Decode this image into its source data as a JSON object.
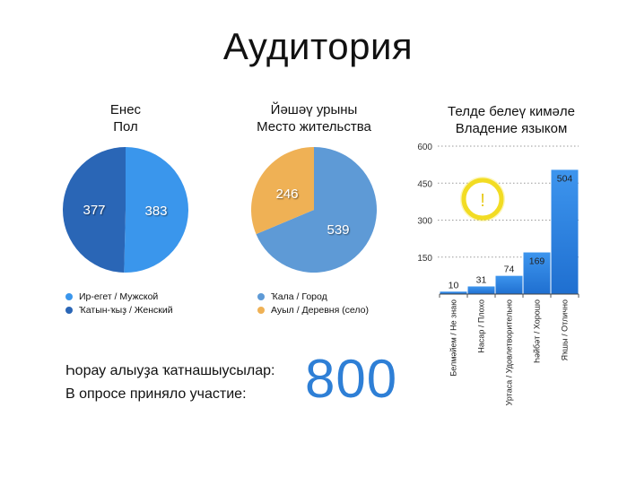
{
  "title": "Аудитория",
  "colors": {
    "male": "#3a96ec",
    "female": "#2a66b6",
    "city": "#5e9ad6",
    "village": "#efb155",
    "bar": "#2a7fdf",
    "warning": "#f4df2a",
    "big_number": "#2e7fd6"
  },
  "participants": {
    "line1": "Һорау алыуҙа ҡатнашыусылар:",
    "line2": "В опросе приняло участие:",
    "count": "800"
  },
  "chart_data": [
    {
      "type": "pie",
      "title_line1": "Енес",
      "title_line2": "Пол",
      "slices": [
        {
          "label": "Ир-егет / Мужской",
          "value": 383,
          "color": "#3a96ec"
        },
        {
          "label": "Ҡатын-ҡыҙ / Женский",
          "value": 377,
          "color": "#2a66b6"
        }
      ],
      "legend_position": "bottom"
    },
    {
      "type": "pie",
      "title_line1": "Йәшәү урыны",
      "title_line2": "Место жительства",
      "slices": [
        {
          "label": "Ҡала / Город",
          "value": 539,
          "color": "#5e9ad6"
        },
        {
          "label": "Ауыл / Деревня (село)",
          "value": 246,
          "color": "#efb155"
        }
      ],
      "legend_position": "bottom"
    },
    {
      "type": "bar",
      "title_line1": "Телде белеү кимәле",
      "title_line2": "Владение языком",
      "categories": [
        "Белмәйем / Не знаю",
        "Насар / Плохо",
        "Уртаса / Удовлетворительно",
        "Һәйбәт / Хорошо",
        "Яҡшы / Отлично"
      ],
      "values": [
        10,
        31,
        74,
        169,
        504
      ],
      "ylim": [
        0,
        600
      ],
      "yticks": [
        "150",
        "300",
        "450",
        "600"
      ],
      "grid": true,
      "warning_icon": "exclamation-icon",
      "warning_text": "!"
    }
  ]
}
